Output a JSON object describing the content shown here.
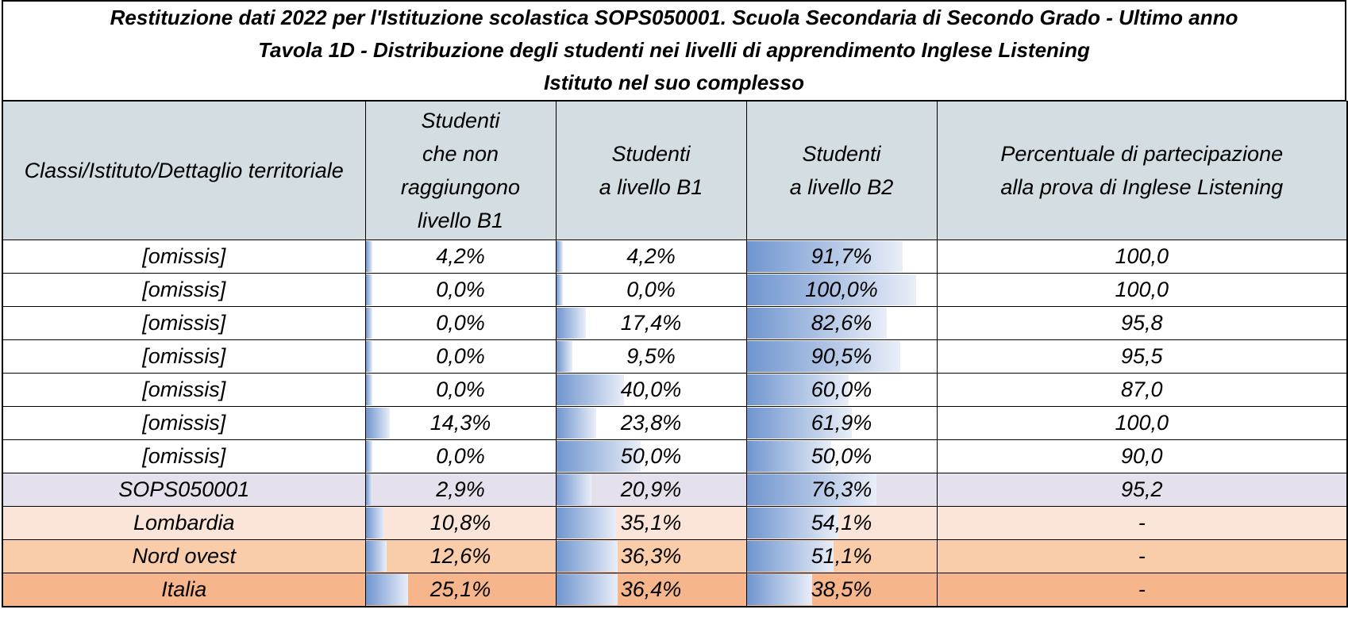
{
  "title": {
    "line1": "Restituzione dati 2022 per l'Istituzione scolastica SOPS050001. Scuola Secondaria di Secondo Grado - Ultimo anno",
    "line2": "Tavola 1D - Distribuzione degli studenti nei livelli di apprendimento Inglese Listening",
    "line3": "Istituto nel suo complesso"
  },
  "headers": {
    "col1": "Classi/Istituto/Dettaglio territoriale",
    "col2": [
      "Studenti",
      "che non",
      "raggiungono",
      "livello B1"
    ],
    "col3": [
      "Studenti",
      "a livello B1"
    ],
    "col4": [
      "Studenti",
      "a livello B2"
    ],
    "col5": [
      "Percentuale di partecipazione",
      "alla prova di Inglese Listening"
    ]
  },
  "rows": [
    {
      "label": "[omissis]",
      "below_b1": "4,2%",
      "b1": "4,2%",
      "b2": "91,7%",
      "participation": "100,0",
      "below_b1_value": 4.2,
      "b1_value": 4.2,
      "b2_value": 91.7
    },
    {
      "label": "[omissis]",
      "below_b1": "0,0%",
      "b1": "0,0%",
      "b2": "100,0%",
      "participation": "100,0",
      "below_b1_value": 0.0,
      "b1_value": 0.0,
      "b2_value": 100.0
    },
    {
      "label": "[omissis]",
      "below_b1": "0,0%",
      "b1": "17,4%",
      "b2": "82,6%",
      "participation": "95,8",
      "below_b1_value": 0.0,
      "b1_value": 17.4,
      "b2_value": 82.6
    },
    {
      "label": "[omissis]",
      "below_b1": "0,0%",
      "b1": "9,5%",
      "b2": "90,5%",
      "participation": "95,5",
      "below_b1_value": 0.0,
      "b1_value": 9.5,
      "b2_value": 90.5
    },
    {
      "label": "[omissis]",
      "below_b1": "0,0%",
      "b1": "40,0%",
      "b2": "60,0%",
      "participation": "87,0",
      "below_b1_value": 0.0,
      "b1_value": 40.0,
      "b2_value": 60.0
    },
    {
      "label": "[omissis]",
      "below_b1": "14,3%",
      "b1": "23,8%",
      "b2": "61,9%",
      "participation": "100,0",
      "below_b1_value": 14.3,
      "b1_value": 23.8,
      "b2_value": 61.9
    },
    {
      "label": "[omissis]",
      "below_b1": "0,0%",
      "b1": "50,0%",
      "b2": "50,0%",
      "participation": "90,0",
      "below_b1_value": 0.0,
      "b1_value": 50.0,
      "b2_value": 50.0
    },
    {
      "label": "SOPS050001",
      "below_b1": "2,9%",
      "b1": "20,9%",
      "b2": "76,3%",
      "participation": "95,2",
      "below_b1_value": 2.9,
      "b1_value": 20.9,
      "b2_value": 76.3
    },
    {
      "label": "Lombardia",
      "below_b1": "10,8%",
      "b1": "35,1%",
      "b2": "54,1%",
      "participation": "-",
      "below_b1_value": 10.8,
      "b1_value": 35.1,
      "b2_value": 54.1
    },
    {
      "label": "Nord ovest",
      "below_b1": "12,6%",
      "b1": "36,3%",
      "b2": "51,1%",
      "participation": "-",
      "below_b1_value": 12.6,
      "b1_value": 36.3,
      "b2_value": 51.1
    },
    {
      "label": "Italia",
      "below_b1": "25,1%",
      "b1": "36,4%",
      "b2": "38,5%",
      "participation": "-",
      "below_b1_value": 25.1,
      "b1_value": 36.4,
      "b2_value": 38.5
    }
  ],
  "colors": {
    "header_bg": "#d3dde2",
    "bar_start": "#6f95cf",
    "bar_end": "#e9eef8",
    "school_row": "#e4e0ec",
    "region_row": "#fbe5d8",
    "macro_area_row": "#f9cda9",
    "national_row": "#f7b58b"
  }
}
